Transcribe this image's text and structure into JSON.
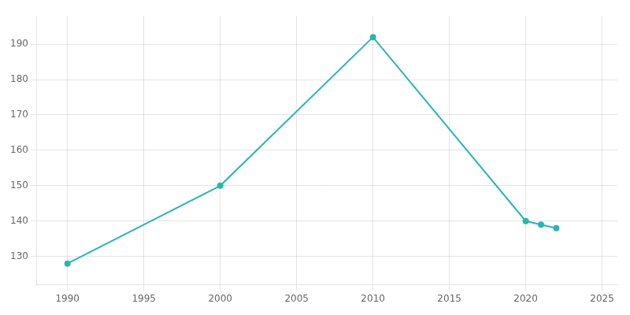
{
  "chart_data": {
    "type": "line",
    "x": [
      1990,
      2000,
      2010,
      2020,
      2021,
      2022
    ],
    "values": [
      128,
      150,
      192,
      140,
      139,
      138
    ],
    "color": "#2ab5b5",
    "marker": "circle",
    "xlim": [
      1988,
      2026
    ],
    "ylim": [
      122,
      198
    ],
    "xticks": [
      1990,
      1995,
      2000,
      2005,
      2010,
      2015,
      2020,
      2025
    ],
    "yticks": [
      130,
      140,
      150,
      160,
      170,
      180,
      190
    ],
    "grid": true
  }
}
